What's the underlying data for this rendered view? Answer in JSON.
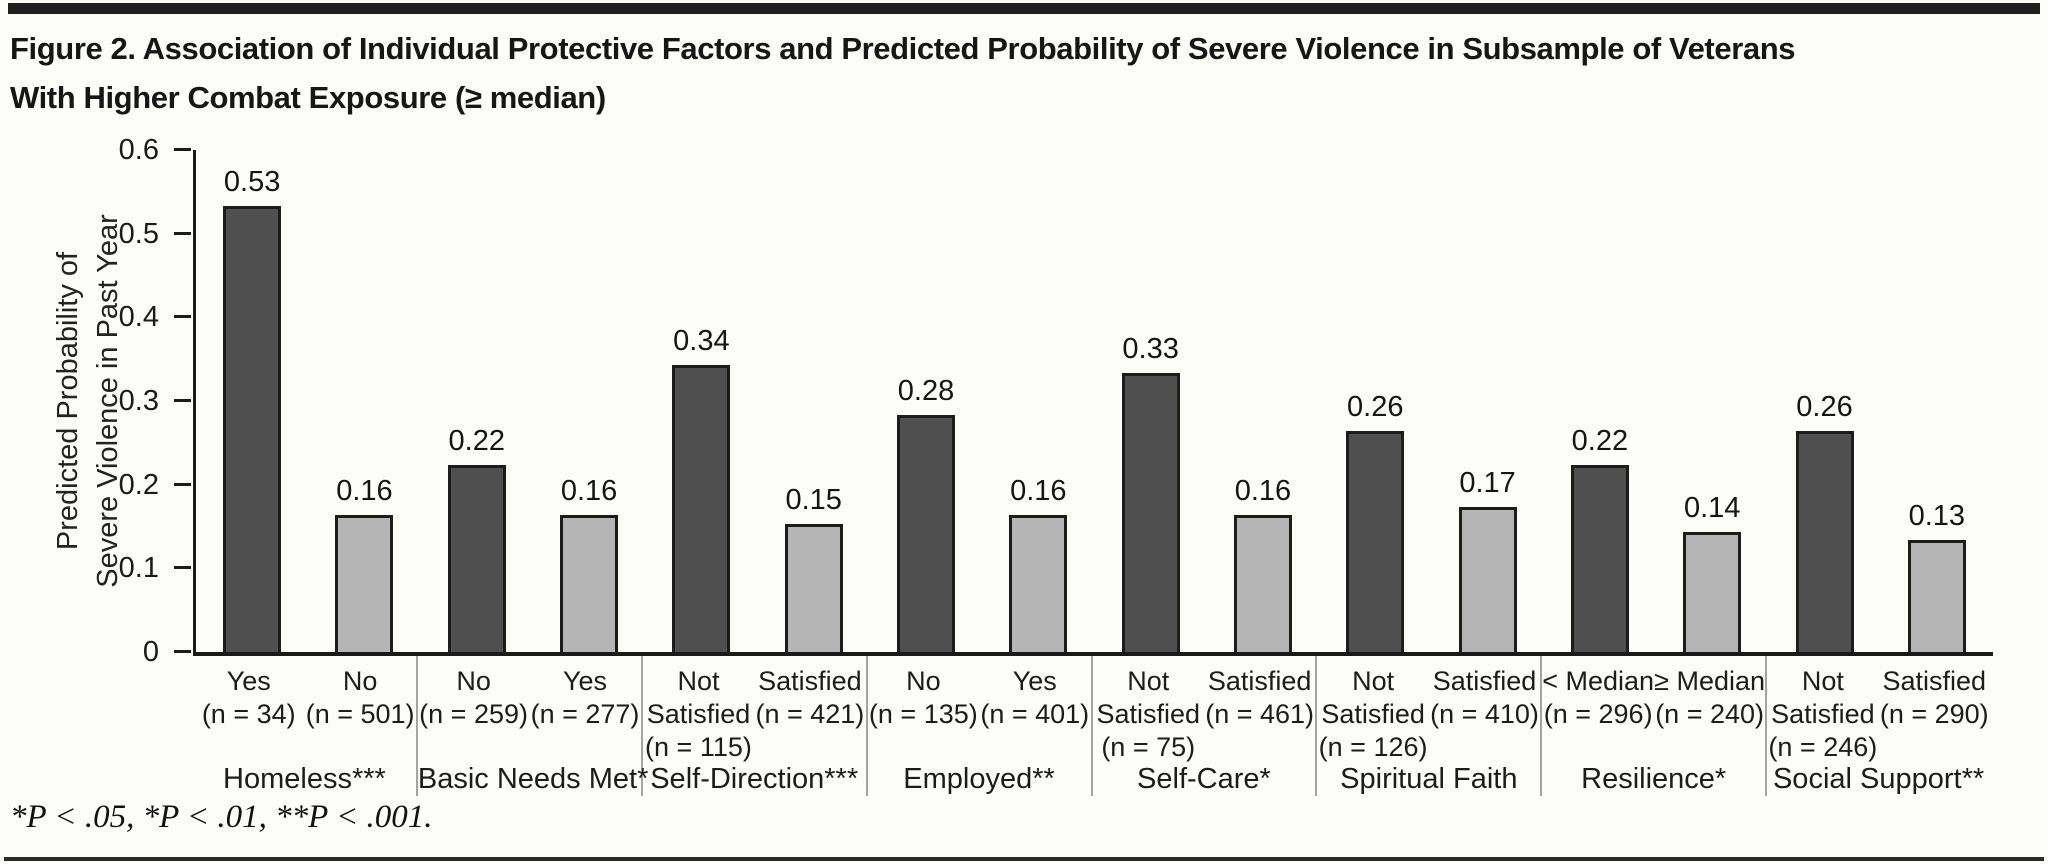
{
  "figure": {
    "title": "Figure 2. Association of Individual Protective Factors and Predicted Probability of Severe Violence in Subsample of Veterans\nWith Higher Combat Exposure (≥ median)",
    "footnote": "*P < .05, *P < .01, **P < .001."
  },
  "chart_data": {
    "type": "bar",
    "title": "Figure 2. Association of Individual Protective Factors and Predicted Probability of Severe Violence in Subsample of Veterans With Higher Combat Exposure (≥ median)",
    "xlabel": "",
    "ylabel": "Predicted Probability of\nSevere Violence in Past Year",
    "ylim": [
      0,
      0.6
    ],
    "ytick_values": [
      0,
      0.1,
      0.2,
      0.3,
      0.4,
      0.5,
      0.6
    ],
    "ytick_labels": [
      "0",
      "0.1",
      "0.2",
      "0.3",
      "0.4",
      "0.5",
      "0.6"
    ],
    "grid": false,
    "legend": "none",
    "colors": {
      "dark_bar": "#4f4f4f",
      "light_bar": "#b5b5b5",
      "bar_border": "#1c1c1c"
    },
    "groups": [
      {
        "label": "Homeless***",
        "bars": [
          {
            "category": "Yes",
            "n_label": "(n = 34)",
            "value": 0.53,
            "shade": "dark"
          },
          {
            "category": "No",
            "n_label": "(n = 501)",
            "value": 0.16,
            "shade": "light"
          }
        ]
      },
      {
        "label": "Basic Needs Met*",
        "bars": [
          {
            "category": "No",
            "n_label": "(n = 259)",
            "value": 0.22,
            "shade": "dark"
          },
          {
            "category": "Yes",
            "n_label": "(n = 277)",
            "value": 0.16,
            "shade": "light"
          }
        ]
      },
      {
        "label": "Self-Direction***",
        "bars": [
          {
            "category": "Not\nSatisfied",
            "n_label": "(n = 115)",
            "value": 0.34,
            "shade": "dark"
          },
          {
            "category": "Satisfied",
            "n_label": "(n = 421)",
            "value": 0.15,
            "shade": "light"
          }
        ]
      },
      {
        "label": "Employed**",
        "bars": [
          {
            "category": "No",
            "n_label": "(n = 135)",
            "value": 0.28,
            "shade": "dark"
          },
          {
            "category": "Yes",
            "n_label": "(n = 401)",
            "value": 0.16,
            "shade": "light"
          }
        ]
      },
      {
        "label": "Self-Care*",
        "bars": [
          {
            "category": "Not\nSatisfied",
            "n_label": "(n = 75)",
            "value": 0.33,
            "shade": "dark"
          },
          {
            "category": "Satisfied",
            "n_label": "(n = 461)",
            "value": 0.16,
            "shade": "light"
          }
        ]
      },
      {
        "label": "Spiritual Faith",
        "bars": [
          {
            "category": "Not\nSatisfied",
            "n_label": "(n = 126)",
            "value": 0.26,
            "shade": "dark"
          },
          {
            "category": "Satisfied",
            "n_label": "(n = 410)",
            "value": 0.17,
            "shade": "light"
          }
        ]
      },
      {
        "label": "Resilience*",
        "bars": [
          {
            "category": "< Median",
            "n_label": "(n = 296)",
            "value": 0.22,
            "shade": "dark"
          },
          {
            "category": "≥ Median",
            "n_label": "(n = 240)",
            "value": 0.14,
            "shade": "light"
          }
        ]
      },
      {
        "label": "Social Support**",
        "bars": [
          {
            "category": "Not\nSatisfied",
            "n_label": "(n = 246)",
            "value": 0.26,
            "shade": "dark"
          },
          {
            "category": "Satisfied",
            "n_label": "(n = 290)",
            "value": 0.13,
            "shade": "light"
          }
        ]
      }
    ]
  }
}
